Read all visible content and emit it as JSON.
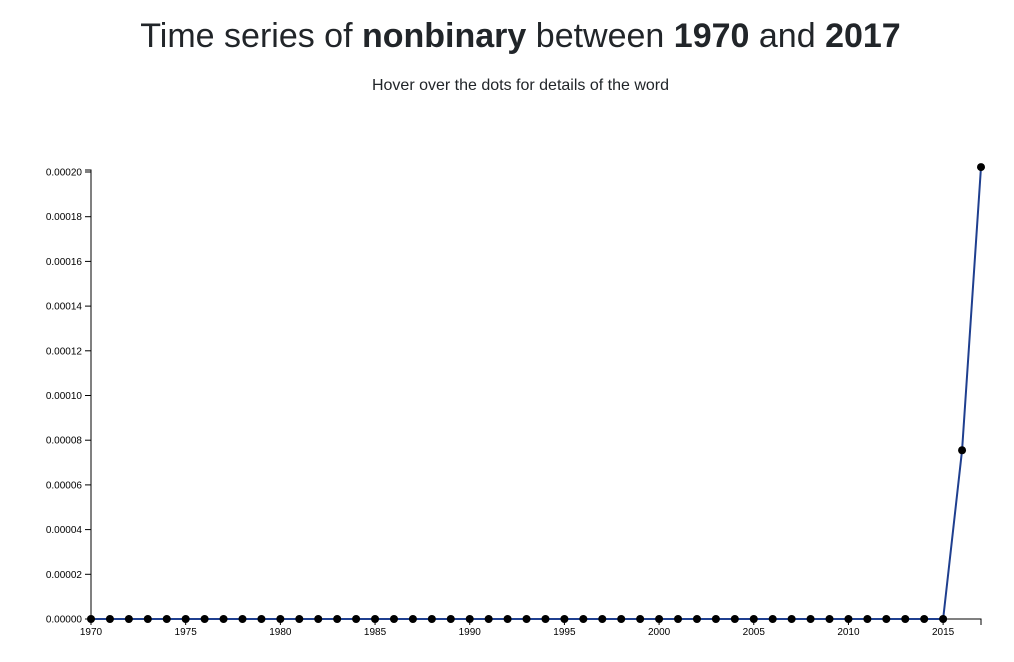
{
  "header": {
    "title_prefix": "Time series of",
    "word": "nonbinary",
    "between_label": "between",
    "start_year": "1970",
    "and_label": "and",
    "end_year": "2017",
    "subtitle": "Hover over the dots for details of the word"
  },
  "colors": {
    "line": "#1f3f8f",
    "dot": "#000000",
    "axis": "#000000"
  },
  "chart_data": {
    "type": "line",
    "title": "Time series of nonbinary between 1970 and 2017",
    "subtitle": "Hover over the dots for details of the word",
    "xlabel": "",
    "ylabel": "",
    "xlim": [
      1970,
      2017
    ],
    "ylim": [
      0,
      0.0002
    ],
    "grid": false,
    "x_ticks": [
      "1970",
      "1975",
      "1980",
      "1985",
      "1990",
      "1995",
      "2000",
      "2005",
      "2010",
      "2015"
    ],
    "y_ticks": [
      "0.00000",
      "0.00002",
      "0.00004",
      "0.00006",
      "0.00008",
      "0.00010",
      "0.00012",
      "0.00014",
      "0.00016",
      "0.00018",
      "0.00020"
    ],
    "series": [
      {
        "x": [
          1970,
          1971,
          1972,
          1973,
          1974,
          1975,
          1976,
          1977,
          1978,
          1979,
          1980,
          1981,
          1982,
          1983,
          1984,
          1985,
          1986,
          1987,
          1988,
          1989,
          1990,
          1991,
          1992,
          1993,
          1994,
          1995,
          1996,
          1997,
          1998,
          1999,
          2000,
          2001,
          2002,
          2003,
          2004,
          2005,
          2006,
          2007,
          2008,
          2009,
          2010,
          2011,
          2012,
          2013,
          2014,
          2015,
          2016,
          2017
        ],
        "values": [
          0,
          0,
          0,
          0,
          0,
          0,
          0,
          0,
          0,
          0,
          0,
          0,
          0,
          0,
          0,
          0,
          0,
          0,
          0,
          0,
          0,
          0,
          0,
          0,
          0,
          0,
          0,
          0,
          0,
          0,
          0,
          0,
          0,
          0,
          0,
          0,
          0,
          0,
          0,
          0,
          0,
          0,
          0,
          0,
          0,
          0,
          7.55e-05,
          0.0002022
        ]
      }
    ]
  }
}
